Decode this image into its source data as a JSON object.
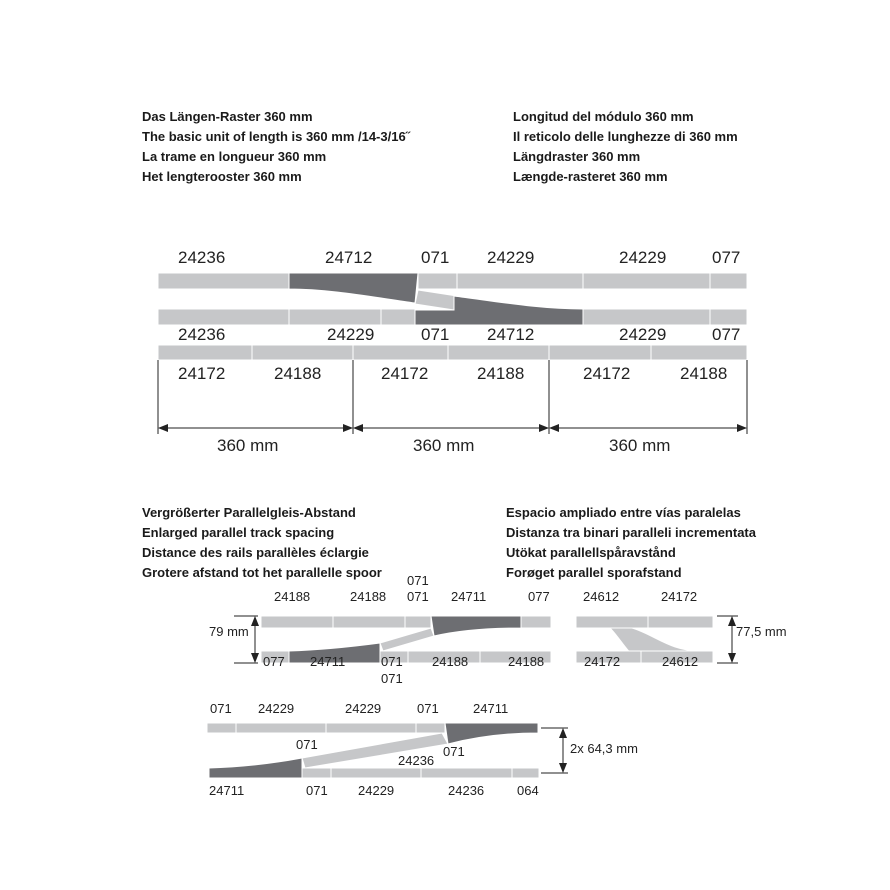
{
  "headings": {
    "top_left": [
      "Das Längen-Raster 360 mm",
      "The basic unit of length is 360 mm /14-3/16˝",
      "La trame en longueur 360 mm",
      "Het lengterooster 360 mm"
    ],
    "top_right": [
      "Longitud del módulo 360 mm",
      "Il reticolo delle lunghezze di 360 mm",
      "Längdraster 360 mm",
      "Længde-rasteret 360 mm"
    ],
    "mid_left": [
      "Vergrößerter Parallelgleis-Abstand",
      "Enlarged parallel track spacing",
      "Distance des rails parallèles éclargie",
      "Grotere afstand tot het parallelle spoor"
    ],
    "mid_right": [
      "Espacio ampliado entre vías paralelas",
      "Distanza tra binari paralleli incrementata",
      "Utökat parallellspåravstånd",
      "Forøget parallel sporafstand"
    ]
  },
  "grid": {
    "row_a": [
      "24236",
      "24712",
      "071",
      "24229",
      "24229",
      "077"
    ],
    "row_b": [
      "24236",
      "24229",
      "071",
      "24712",
      "24229",
      "077"
    ],
    "row_c": [
      "24172",
      "24188",
      "24172",
      "24188",
      "24172",
      "24188"
    ],
    "dims": [
      "360 mm",
      "360 mm",
      "360 mm"
    ]
  },
  "spacing79": {
    "top": [
      "24188",
      "24188",
      "071",
      "071",
      "24711",
      "077"
    ],
    "bottom": [
      "077",
      "24711",
      "071",
      "071",
      "24188",
      "24188"
    ],
    "dim": "79 mm"
  },
  "spacing775": {
    "top": [
      "24612",
      "24172"
    ],
    "bottom": [
      "24172",
      "24612"
    ],
    "dim": "77,5 mm"
  },
  "spacing643": {
    "top": [
      "071",
      "24229",
      "24229",
      "071",
      "24711"
    ],
    "middle": [
      "071",
      "24236",
      "071"
    ],
    "bottom": [
      "24711",
      "071",
      "24229",
      "24236",
      "064"
    ],
    "dim": "2x 64,3 mm"
  },
  "colors": {
    "track": "#c6c7c9",
    "turnout": "#6d6e72"
  }
}
